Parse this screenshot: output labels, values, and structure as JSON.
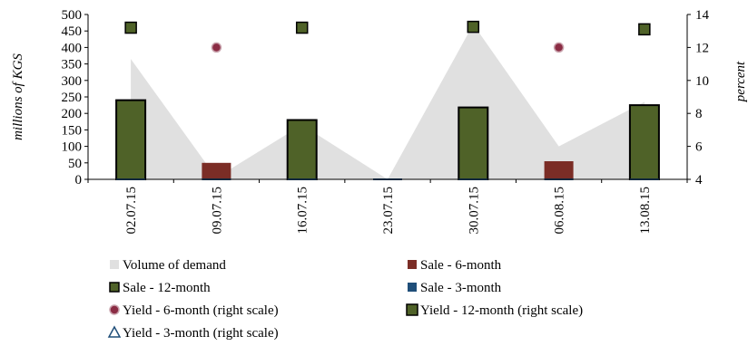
{
  "chart_data": {
    "type": "bar",
    "categories": [
      "02.07.15",
      "09.07.15",
      "16.07.15",
      "23.07.15",
      "30.07.15",
      "06.08.15",
      "13.08.15"
    ],
    "ylabel": "millions of KGS",
    "y2label": "percent",
    "ylim": [
      0,
      500
    ],
    "y2lim": [
      4,
      14
    ],
    "yticks": [
      0,
      50,
      100,
      150,
      200,
      250,
      300,
      350,
      400,
      450,
      500
    ],
    "y2ticks": [
      4,
      6,
      8,
      10,
      12,
      14
    ],
    "series": [
      {
        "name": "Volume of demand",
        "kind": "area",
        "axis": "left",
        "color": "#e0e0e0",
        "values": [
          365,
          5,
          165,
          0,
          470,
          100,
          235
        ]
      },
      {
        "name": "Sale - 6-month",
        "kind": "bar",
        "axis": "left",
        "color": "#7b2d26",
        "values": [
          null,
          50,
          null,
          null,
          null,
          55,
          null
        ]
      },
      {
        "name": "Sale - 12-month",
        "kind": "bar",
        "axis": "left",
        "color": "#4f6228",
        "values": [
          240,
          null,
          180,
          null,
          218,
          null,
          225
        ]
      },
      {
        "name": "Sale - 3-month",
        "kind": "bar",
        "axis": "left",
        "color": "#1f4e79",
        "values": [
          0,
          0,
          0,
          0,
          0,
          0,
          0
        ]
      },
      {
        "name": "Yield - 6-month (right scale)",
        "kind": "marker-circle",
        "axis": "right",
        "color": "#8b2c44",
        "values": [
          null,
          12.0,
          null,
          null,
          null,
          12.0,
          null
        ]
      },
      {
        "name": "Yield - 12-month (right scale)",
        "kind": "marker-square",
        "axis": "right",
        "color": "#4f6228",
        "values": [
          13.2,
          null,
          13.2,
          null,
          13.25,
          null,
          13.1
        ]
      },
      {
        "name": "Yield - 3-month (right scale)",
        "kind": "marker-triangle",
        "axis": "right",
        "color": "#1f4e79",
        "values": [
          null,
          null,
          null,
          null,
          null,
          null,
          null
        ]
      }
    ],
    "legend_position": "bottom"
  }
}
